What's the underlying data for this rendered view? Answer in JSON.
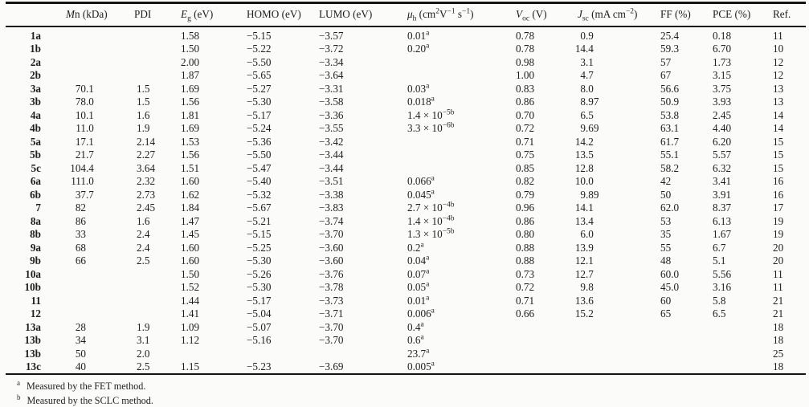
{
  "table": {
    "columns": [
      {
        "header": ""
      },
      {
        "header": "*M*n (kDa)"
      },
      {
        "header": "PDI"
      },
      {
        "header": "*E*_{g} (eV)"
      },
      {
        "header": "HOMO (eV)"
      },
      {
        "header": "LUMO (eV)"
      },
      {
        "header": "*μ*_{h} (cm^{2}V^{−1} s^{−1})"
      },
      {
        "header": "*V*_{oc} (V)"
      },
      {
        "header": "*J*_{sc} (mA cm^{−2})"
      },
      {
        "header": "FF (%)"
      },
      {
        "header": "PCE (%)"
      },
      {
        "header": "Ref."
      }
    ],
    "rows": [
      [
        "1a",
        "",
        "",
        "1.58",
        "−5.15",
        "−3.57",
        "0.01^{a}",
        "0.78",
        "0.9",
        "25.4",
        "0.18",
        "11"
      ],
      [
        "1b",
        "",
        "",
        "1.50",
        "−5.22",
        "−3.72",
        "0.20^{a}",
        "0.78",
        "14.4",
        "59.3",
        "6.70",
        "10"
      ],
      [
        "2a",
        "",
        "",
        "2.00",
        "−5.50",
        "−3.34",
        "",
        "0.98",
        "3.1",
        "57",
        "1.73",
        "12"
      ],
      [
        "2b",
        "",
        "",
        "1.87",
        "−5.65",
        "−3.64",
        "",
        "1.00",
        "4.7",
        "67",
        "3.15",
        "12"
      ],
      [
        "3a",
        "70.1",
        "1.5",
        "1.69",
        "−5.27",
        "−3.31",
        "0.03^{a}",
        "0.83",
        "8.0",
        "56.6",
        "3.75",
        "13"
      ],
      [
        "3b",
        "78.0",
        "1.5",
        "1.56",
        "−5.30",
        "−3.58",
        "0.018^{a}",
        "0.86",
        "8.97",
        "50.9",
        "3.93",
        "13"
      ],
      [
        "4a",
        "10.1",
        "1.6",
        "1.81",
        "−5.17",
        "−3.36",
        "1.4 × 10^{−5b}",
        "0.70",
        "6.5",
        "53.8",
        "2.45",
        "14"
      ],
      [
        "4b",
        "11.0",
        "1.9",
        "1.69",
        "−5.24",
        "−3.55",
        "3.3 × 10^{−6b}",
        "0.72",
        "9.69",
        "63.1",
        "4.40",
        "14"
      ],
      [
        "5a",
        "17.1",
        "2.14",
        "1.53",
        "−5.36",
        "−3.42",
        "",
        "0.71",
        "14.2",
        "61.7",
        "6.20",
        "15"
      ],
      [
        "5b",
        "21.7",
        "2.27",
        "1.56",
        "−5.50",
        "−3.44",
        "",
        "0.75",
        "13.5",
        "55.1",
        "5.57",
        "15"
      ],
      [
        "5c",
        "104.4",
        "3.64",
        "1.51",
        "−5.47",
        "−3.44",
        "",
        "0.85",
        "12.8",
        "58.2",
        "6.32",
        "15"
      ],
      [
        "6a",
        "111.0",
        "2.32",
        "1.60",
        "−5.40",
        "−3.51",
        "0.066^{a}",
        "0.82",
        "10.0",
        "42",
        "3.41",
        "16"
      ],
      [
        "6b",
        "37.7",
        "2.73",
        "1.62",
        "−5.32",
        "−3.38",
        "0.045^{a}",
        "0.79",
        "9.89",
        "50",
        "3.91",
        "16"
      ],
      [
        "7",
        "82",
        "2.45",
        "1.84",
        "−5.67",
        "−3.83",
        "2.7 × 10^{−4b}",
        "0.96",
        "14.1",
        "62.0",
        "8.37",
        "17"
      ],
      [
        "8a",
        "86",
        "1.6",
        "1.47",
        "−5.21",
        "−3.74",
        "1.4 × 10^{−4b}",
        "0.86",
        "13.4",
        "53",
        "6.13",
        "19"
      ],
      [
        "8b",
        "33",
        "2.4",
        "1.45",
        "−5.15",
        "−3.70",
        "1.3 × 10^{−5b}",
        "0.80",
        "6.0",
        "35",
        "1.67",
        "19"
      ],
      [
        "9a",
        "68",
        "2.4",
        "1.60",
        "−5.25",
        "−3.60",
        "0.2^{a}",
        "0.88",
        "13.9",
        "55",
        "6.7",
        "20"
      ],
      [
        "9b",
        "66",
        "2.5",
        "1.60",
        "−5.30",
        "−3.60",
        "0.04^{a}",
        "0.88",
        "12.1",
        "48",
        "5.1",
        "20"
      ],
      [
        "10a",
        "",
        "",
        "1.50",
        "−5.26",
        "−3.76",
        "0.07^{a}",
        "0.73",
        "12.7",
        "60.0",
        "5.56",
        "11"
      ],
      [
        "10b",
        "",
        "",
        "1.52",
        "−5.30",
        "−3.78",
        "0.05^{a}",
        "0.72",
        "9.8",
        "45.0",
        "3.16",
        "11"
      ],
      [
        "11",
        "",
        "",
        "1.44",
        "−5.17",
        "−3.73",
        "0.01^{a}",
        "0.71",
        "13.6",
        "60",
        "5.8",
        "21"
      ],
      [
        "12",
        "",
        "",
        "1.41",
        "−5.04",
        "−3.71",
        "0.006^{a}",
        "0.66",
        "15.2",
        "65",
        "6.5",
        "21"
      ],
      [
        "13a",
        "28",
        "1.9",
        "1.09",
        "−5.07",
        "−3.70",
        "0.4^{a}",
        "",
        "",
        "",
        "",
        "18"
      ],
      [
        "13b",
        "34",
        "3.1",
        "1.12",
        "−5.16",
        "−3.70",
        "0.6^{a}",
        "",
        "",
        "",
        "",
        "18"
      ],
      [
        "13b",
        "50",
        "2.0",
        "",
        "",
        "",
        "23.7^{a}",
        "",
        "",
        "",
        "",
        "25"
      ],
      [
        "13c",
        "40",
        "2.5",
        "1.15",
        "−5.23",
        "−3.69",
        "0.005^{a}",
        "",
        "",
        "",
        "",
        "18"
      ]
    ],
    "footnotes": [
      {
        "marker": "a",
        "text": "Measured by the FET method."
      },
      {
        "marker": "b",
        "text": "Measured by the SCLC method."
      }
    ]
  }
}
